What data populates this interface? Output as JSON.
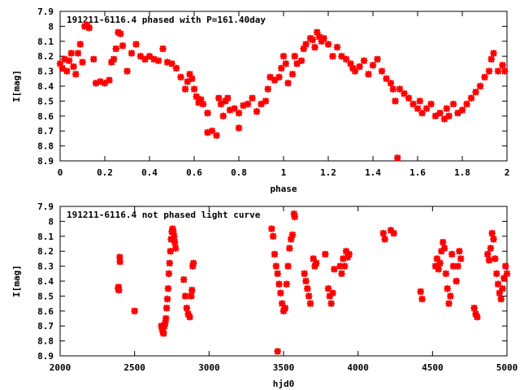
{
  "chart_data": [
    {
      "type": "scatter",
      "title": "191211-6116.4 phased with P=161.40day",
      "xlabel": "phase",
      "ylabel": "I[mag]",
      "xlim": [
        0,
        2
      ],
      "ylim": [
        8.9,
        7.9
      ],
      "y_inverted": true,
      "xticks": [
        0,
        0.2,
        0.4,
        0.6,
        0.8,
        1,
        1.2,
        1.4,
        1.6,
        1.8,
        2
      ],
      "xtick_labels": [
        "0",
        "0.2",
        "0.4",
        "0.6",
        "0.8",
        "1",
        "1.2",
        "1.4",
        "1.6",
        "1.8",
        "2"
      ],
      "yticks": [
        7.9,
        8,
        8.1,
        8.2,
        8.3,
        8.4,
        8.5,
        8.6,
        8.7,
        8.8,
        8.9
      ],
      "ytick_labels": [
        "7.9",
        "8",
        "8.1",
        "8.2",
        "8.3",
        "8.4",
        "8.5",
        "8.6",
        "8.7",
        "8.8",
        "8.9"
      ],
      "marker_color": "#ff0000",
      "grid": false,
      "series": [
        {
          "points": [
            [
              0.0,
              8.25
            ],
            [
              0.01,
              8.28
            ],
            [
              0.02,
              8.22
            ],
            [
              0.03,
              8.3
            ],
            [
              0.04,
              8.23
            ],
            [
              0.05,
              8.18
            ],
            [
              0.06,
              8.27
            ],
            [
              0.07,
              8.32
            ],
            [
              0.08,
              8.18
            ],
            [
              0.09,
              8.12
            ],
            [
              0.1,
              8.24
            ],
            [
              0.11,
              8.0
            ],
            [
              0.12,
              7.99
            ],
            [
              0.13,
              8.01
            ],
            [
              0.15,
              8.22
            ],
            [
              0.16,
              8.38
            ],
            [
              0.18,
              8.37
            ],
            [
              0.2,
              8.38
            ],
            [
              0.22,
              8.36
            ],
            [
              0.23,
              8.24
            ],
            [
              0.24,
              8.22
            ],
            [
              0.25,
              8.15
            ],
            [
              0.26,
              8.04
            ],
            [
              0.27,
              8.05
            ],
            [
              0.28,
              8.13
            ],
            [
              0.3,
              8.3
            ],
            [
              0.32,
              8.18
            ],
            [
              0.34,
              8.12
            ],
            [
              0.36,
              8.2
            ],
            [
              0.38,
              8.22
            ],
            [
              0.4,
              8.2
            ],
            [
              0.42,
              8.22
            ],
            [
              0.44,
              8.23
            ],
            [
              0.46,
              8.15
            ],
            [
              0.48,
              8.24
            ],
            [
              0.5,
              8.25
            ],
            [
              0.52,
              8.28
            ],
            [
              0.54,
              8.34
            ],
            [
              0.56,
              8.42
            ],
            [
              0.57,
              8.37
            ],
            [
              0.58,
              8.32
            ],
            [
              0.59,
              8.35
            ],
            [
              0.6,
              8.42
            ],
            [
              0.61,
              8.47
            ],
            [
              0.62,
              8.51
            ],
            [
              0.63,
              8.49
            ],
            [
              0.64,
              8.52
            ],
            [
              0.66,
              8.58
            ],
            [
              0.66,
              8.71
            ],
            [
              0.68,
              8.7
            ],
            [
              0.7,
              8.73
            ],
            [
              0.71,
              8.48
            ],
            [
              0.72,
              8.52
            ],
            [
              0.73,
              8.6
            ],
            [
              0.74,
              8.5
            ],
            [
              0.75,
              8.48
            ],
            [
              0.76,
              8.56
            ],
            [
              0.78,
              8.55
            ],
            [
              0.8,
              8.58
            ],
            [
              0.8,
              8.68
            ],
            [
              0.82,
              8.53
            ],
            [
              0.84,
              8.52
            ],
            [
              0.86,
              8.48
            ],
            [
              0.88,
              8.57
            ],
            [
              0.9,
              8.52
            ],
            [
              0.92,
              8.5
            ],
            [
              0.93,
              8.42
            ],
            [
              0.94,
              8.34
            ],
            [
              0.96,
              8.36
            ],
            [
              0.98,
              8.34
            ],
            [
              0.99,
              8.28
            ],
            [
              1.0,
              8.2
            ],
            [
              1.01,
              8.25
            ],
            [
              1.02,
              8.38
            ],
            [
              1.04,
              8.32
            ],
            [
              1.05,
              8.2
            ],
            [
              1.06,
              8.25
            ],
            [
              1.08,
              8.23
            ],
            [
              1.09,
              8.15
            ],
            [
              1.1,
              8.12
            ],
            [
              1.12,
              8.08
            ],
            [
              1.13,
              8.09
            ],
            [
              1.14,
              8.14
            ],
            [
              1.15,
              8.04
            ],
            [
              1.16,
              8.07
            ],
            [
              1.17,
              8.1
            ],
            [
              1.18,
              8.08
            ],
            [
              1.2,
              8.12
            ],
            [
              1.22,
              8.2
            ],
            [
              1.24,
              8.14
            ],
            [
              1.26,
              8.2
            ],
            [
              1.28,
              8.22
            ],
            [
              1.3,
              8.25
            ],
            [
              1.31,
              8.28
            ],
            [
              1.32,
              8.3
            ],
            [
              1.34,
              8.27
            ],
            [
              1.36,
              8.23
            ],
            [
              1.38,
              8.32
            ],
            [
              1.4,
              8.26
            ],
            [
              1.42,
              8.22
            ],
            [
              1.44,
              8.3
            ],
            [
              1.46,
              8.35
            ],
            [
              1.48,
              8.38
            ],
            [
              1.49,
              8.42
            ],
            [
              1.5,
              8.5
            ],
            [
              1.51,
              8.88
            ],
            [
              1.52,
              8.42
            ],
            [
              1.54,
              8.45
            ],
            [
              1.56,
              8.48
            ],
            [
              1.58,
              8.52
            ],
            [
              1.6,
              8.55
            ],
            [
              1.61,
              8.5
            ],
            [
              1.62,
              8.58
            ],
            [
              1.64,
              8.55
            ],
            [
              1.66,
              8.52
            ],
            [
              1.68,
              8.6
            ],
            [
              1.7,
              8.58
            ],
            [
              1.72,
              8.62
            ],
            [
              1.73,
              8.55
            ],
            [
              1.74,
              8.6
            ],
            [
              1.76,
              8.52
            ],
            [
              1.78,
              8.58
            ],
            [
              1.8,
              8.56
            ],
            [
              1.82,
              8.52
            ],
            [
              1.84,
              8.48
            ],
            [
              1.86,
              8.44
            ],
            [
              1.88,
              8.4
            ],
            [
              1.9,
              8.34
            ],
            [
              1.92,
              8.3
            ],
            [
              1.93,
              8.22
            ],
            [
              1.94,
              8.18
            ],
            [
              1.96,
              8.3
            ],
            [
              1.98,
              8.26
            ],
            [
              1.99,
              8.3
            ]
          ]
        }
      ]
    },
    {
      "type": "scatter",
      "title": "191211-6116.4 not phased light curve",
      "xlabel": "hjd0",
      "ylabel": "I[mag]",
      "xlim": [
        2000,
        5000
      ],
      "ylim": [
        8.9,
        7.9
      ],
      "y_inverted": true,
      "xticks": [
        2000,
        2500,
        3000,
        3500,
        4000,
        4500,
        5000
      ],
      "xtick_labels": [
        "2000",
        "2500",
        "3000",
        "3500",
        "4000",
        "4500",
        "5000"
      ],
      "yticks": [
        7.9,
        8,
        8.1,
        8.2,
        8.3,
        8.4,
        8.5,
        8.6,
        8.7,
        8.8,
        8.9
      ],
      "ytick_labels": [
        "7.9",
        "8",
        "8.1",
        "8.2",
        "8.3",
        "8.4",
        "8.5",
        "8.6",
        "8.7",
        "8.8",
        "8.9"
      ],
      "marker_color": "#ff0000",
      "grid": false,
      "series": [
        {
          "points": [
            [
              2390,
              8.45
            ],
            [
              2392,
              8.44
            ],
            [
              2395,
              8.46
            ],
            [
              2400,
              8.24
            ],
            [
              2402,
              8.27
            ],
            [
              2500,
              8.6
            ],
            [
              2680,
              8.7
            ],
            [
              2685,
              8.72
            ],
            [
              2690,
              8.74
            ],
            [
              2695,
              8.75
            ],
            [
              2700,
              8.7
            ],
            [
              2705,
              8.68
            ],
            [
              2710,
              8.65
            ],
            [
              2715,
              8.58
            ],
            [
              2720,
              8.52
            ],
            [
              2725,
              8.45
            ],
            [
              2730,
              8.35
            ],
            [
              2735,
              8.28
            ],
            [
              2740,
              8.2
            ],
            [
              2745,
              8.12
            ],
            [
              2750,
              8.07
            ],
            [
              2755,
              8.05
            ],
            [
              2760,
              8.07
            ],
            [
              2765,
              8.1
            ],
            [
              2770,
              8.14
            ],
            [
              2775,
              8.18
            ],
            [
              2830,
              8.39
            ],
            [
              2840,
              8.5
            ],
            [
              2850,
              8.58
            ],
            [
              2860,
              8.62
            ],
            [
              2870,
              8.64
            ],
            [
              2880,
              8.5
            ],
            [
              2885,
              8.46
            ],
            [
              2890,
              8.3
            ],
            [
              2895,
              8.28
            ],
            [
              3420,
              8.05
            ],
            [
              3430,
              8.1
            ],
            [
              3440,
              8.22
            ],
            [
              3450,
              8.3
            ],
            [
              3460,
              8.35
            ],
            [
              3470,
              8.42
            ],
            [
              3480,
              8.48
            ],
            [
              3490,
              8.55
            ],
            [
              3500,
              8.6
            ],
            [
              3510,
              8.58
            ],
            [
              3520,
              8.42
            ],
            [
              3530,
              8.3
            ],
            [
              3540,
              8.18
            ],
            [
              3550,
              8.12
            ],
            [
              3560,
              8.09
            ],
            [
              3570,
              7.95
            ],
            [
              3575,
              7.97
            ],
            [
              3460,
              8.87
            ],
            [
              3640,
              8.35
            ],
            [
              3650,
              8.4
            ],
            [
              3660,
              8.45
            ],
            [
              3670,
              8.5
            ],
            [
              3680,
              8.55
            ],
            [
              3700,
              8.25
            ],
            [
              3710,
              8.3
            ],
            [
              3720,
              8.28
            ],
            [
              3780,
              8.22
            ],
            [
              3800,
              8.45
            ],
            [
              3810,
              8.5
            ],
            [
              3820,
              8.55
            ],
            [
              3830,
              8.48
            ],
            [
              3840,
              8.32
            ],
            [
              3880,
              8.3
            ],
            [
              3890,
              8.35
            ],
            [
              3900,
              8.25
            ],
            [
              3910,
              8.3
            ],
            [
              3920,
              8.2
            ],
            [
              3930,
              8.24
            ],
            [
              3940,
              8.22
            ],
            [
              4170,
              8.08
            ],
            [
              4180,
              8.12
            ],
            [
              4220,
              8.06
            ],
            [
              4240,
              8.08
            ],
            [
              4420,
              8.47
            ],
            [
              4430,
              8.52
            ],
            [
              4520,
              8.3
            ],
            [
              4530,
              8.25
            ],
            [
              4540,
              8.32
            ],
            [
              4550,
              8.28
            ],
            [
              4560,
              8.2
            ],
            [
              4570,
              8.14
            ],
            [
              4580,
              8.18
            ],
            [
              4590,
              8.35
            ],
            [
              4600,
              8.45
            ],
            [
              4610,
              8.55
            ],
            [
              4620,
              8.5
            ],
            [
              4630,
              8.22
            ],
            [
              4640,
              8.3
            ],
            [
              4660,
              8.4
            ],
            [
              4670,
              8.3
            ],
            [
              4680,
              8.2
            ],
            [
              4690,
              8.25
            ],
            [
              4780,
              8.58
            ],
            [
              4790,
              8.62
            ],
            [
              4800,
              8.64
            ],
            [
              4870,
              8.22
            ],
            [
              4880,
              8.26
            ],
            [
              4890,
              8.18
            ],
            [
              4900,
              8.08
            ],
            [
              4910,
              8.12
            ],
            [
              4920,
              8.25
            ],
            [
              4930,
              8.35
            ],
            [
              4940,
              8.42
            ],
            [
              4950,
              8.48
            ],
            [
              4960,
              8.52
            ],
            [
              4970,
              8.45
            ],
            [
              4980,
              8.38
            ],
            [
              4990,
              8.3
            ],
            [
              5000,
              8.35
            ]
          ]
        }
      ]
    }
  ]
}
